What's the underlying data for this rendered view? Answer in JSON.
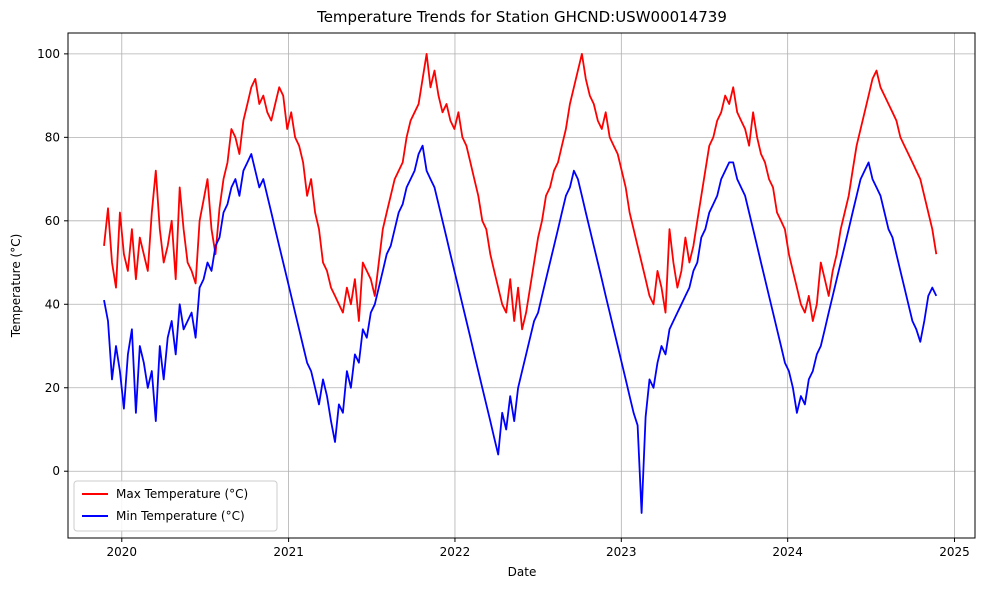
{
  "chart_data": {
    "type": "line",
    "title": "Temperature Trends for Station GHCND:USW00014739",
    "xlabel": "Date",
    "ylabel": "Temperature (°C)",
    "xlim": [
      "2019-09-05",
      "2025-02-15"
    ],
    "ylim": [
      -16,
      105
    ],
    "x_ticks": [
      "2020",
      "2021",
      "2022",
      "2023",
      "2024",
      "2025"
    ],
    "y_ticks": [
      0,
      20,
      40,
      60,
      80,
      100
    ],
    "grid": true,
    "legend": "lower-left",
    "x_range": [
      "2019-11-23",
      "2024-11-22"
    ],
    "series": [
      {
        "name": "Max Temperature (°C)",
        "color": "#ff0000",
        "values": [
          54,
          63,
          50,
          44,
          62,
          52,
          48,
          58,
          46,
          56,
          52,
          48,
          62,
          72,
          58,
          50,
          54,
          60,
          46,
          68,
          58,
          50,
          48,
          45,
          60,
          65,
          70,
          58,
          52,
          63,
          70,
          74,
          82,
          80,
          76,
          84,
          88,
          92,
          94,
          88,
          90,
          86,
          84,
          88,
          92,
          90,
          82,
          86,
          80,
          78,
          74,
          66,
          70,
          62,
          58,
          50,
          48,
          44,
          42,
          40,
          38,
          44,
          40,
          46,
          36,
          50,
          48,
          46,
          42,
          50,
          58,
          62,
          66,
          70,
          72,
          74,
          80,
          84,
          86,
          88,
          94,
          100,
          92,
          96,
          90,
          86,
          88,
          84,
          82,
          86,
          80,
          78,
          74,
          70,
          66,
          60,
          58,
          52,
          48,
          44,
          40,
          38,
          46,
          36,
          44,
          34,
          38,
          44,
          50,
          56,
          60,
          66,
          68,
          72,
          74,
          78,
          82,
          88,
          92,
          96,
          100,
          94,
          90,
          88,
          84,
          82,
          86,
          80,
          78,
          76,
          72,
          68,
          62,
          58,
          54,
          50,
          46,
          42,
          40,
          48,
          44,
          38,
          58,
          50,
          44,
          48,
          56,
          50,
          54,
          60,
          66,
          72,
          78,
          80,
          84,
          86,
          90,
          88,
          92,
          86,
          84,
          82,
          78,
          86,
          80,
          76,
          74,
          70,
          68,
          62,
          60,
          58,
          52,
          48,
          44,
          40,
          38,
          42,
          36,
          40,
          50,
          46,
          42,
          48,
          52,
          58,
          62,
          66,
          72,
          78,
          82,
          86,
          90,
          94,
          96,
          92,
          90,
          88,
          86,
          84,
          80,
          78,
          76,
          74,
          72,
          70,
          66,
          62,
          58,
          52
        ]
      },
      {
        "name": "Min Temperature (°C)",
        "color": "#0000ff",
        "values": [
          41,
          36,
          22,
          30,
          24,
          15,
          28,
          34,
          14,
          30,
          26,
          20,
          24,
          12,
          30,
          22,
          32,
          36,
          28,
          40,
          34,
          36,
          38,
          32,
          44,
          46,
          50,
          48,
          54,
          56,
          62,
          64,
          68,
          70,
          66,
          72,
          74,
          76,
          72,
          68,
          70,
          66,
          62,
          58,
          54,
          50,
          46,
          42,
          38,
          34,
          30,
          26,
          24,
          20,
          16,
          22,
          18,
          12,
          7,
          16,
          14,
          24,
          20,
          28,
          26,
          34,
          32,
          38,
          40,
          44,
          48,
          52,
          54,
          58,
          62,
          64,
          68,
          70,
          72,
          76,
          78,
          72,
          70,
          68,
          64,
          60,
          56,
          52,
          48,
          44,
          40,
          36,
          32,
          28,
          24,
          20,
          16,
          12,
          8,
          4,
          14,
          10,
          18,
          12,
          20,
          24,
          28,
          32,
          36,
          38,
          42,
          46,
          50,
          54,
          58,
          62,
          66,
          68,
          72,
          70,
          66,
          62,
          58,
          54,
          50,
          46,
          42,
          38,
          34,
          30,
          26,
          22,
          18,
          14,
          11,
          -10,
          13,
          22,
          20,
          26,
          30,
          28,
          34,
          36,
          38,
          40,
          42,
          44,
          48,
          50,
          56,
          58,
          62,
          64,
          66,
          70,
          72,
          74,
          74,
          70,
          68,
          66,
          62,
          58,
          54,
          50,
          46,
          42,
          38,
          34,
          30,
          26,
          24,
          20,
          14,
          18,
          16,
          22,
          24,
          28,
          30,
          34,
          38,
          42,
          46,
          50,
          54,
          58,
          62,
          66,
          70,
          72,
          74,
          70,
          68,
          66,
          62,
          58,
          56,
          52,
          48,
          44,
          40,
          36,
          34,
          31,
          36,
          42,
          44,
          42
        ]
      }
    ]
  }
}
